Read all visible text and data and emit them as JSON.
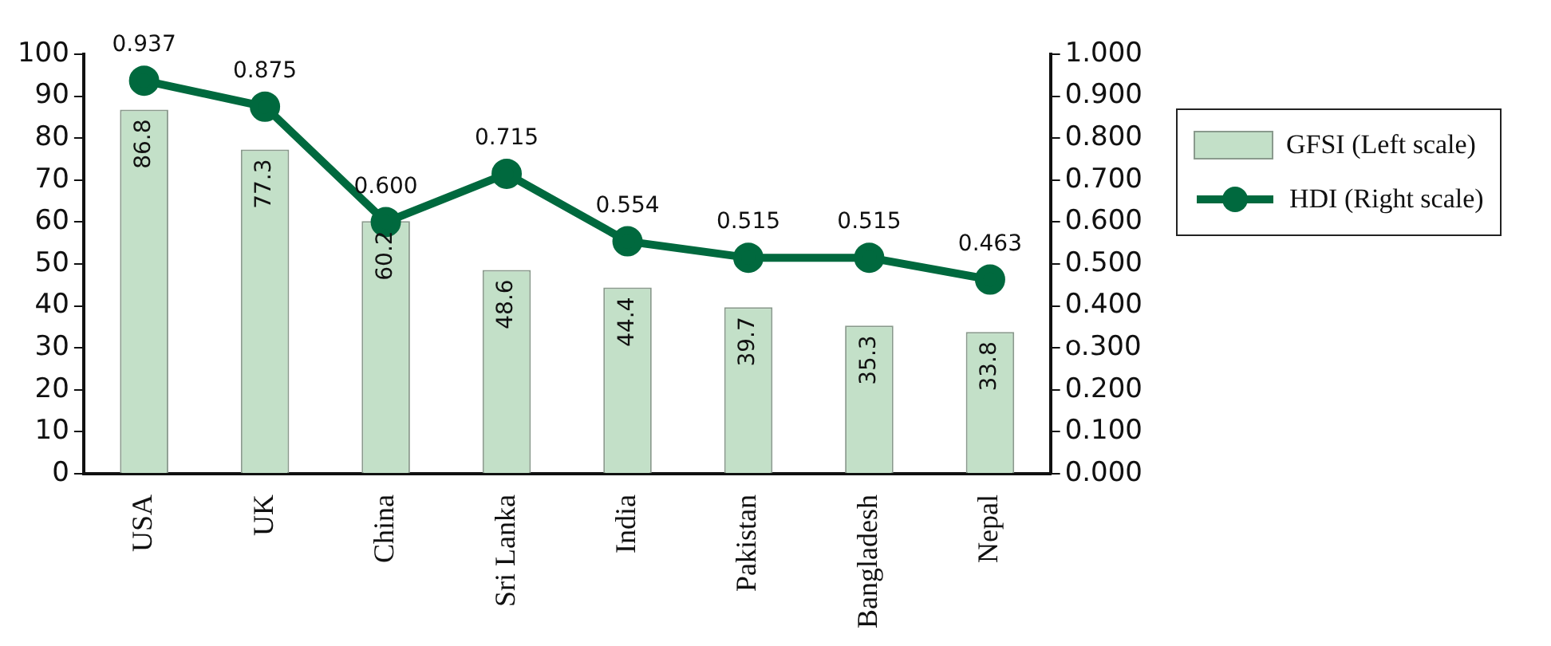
{
  "chart_data": {
    "type": "bar",
    "categories": [
      "USA",
      "UK",
      "China",
      "Sri Lanka",
      "India",
      "Pakistan",
      "Bangladesh",
      "Nepal"
    ],
    "series": [
      {
        "name": "GFSI (Left scale)",
        "color": "#c3e0c8",
        "values": [
          86.8,
          77.3,
          60.2,
          48.6,
          44.4,
          39.7,
          35.3,
          33.8
        ]
      },
      {
        "name": "HDI (Right scale)",
        "type": "line",
        "axis": "y2",
        "color": "#00693e",
        "values": [
          0.937,
          0.875,
          0.6,
          0.715,
          0.554,
          0.515,
          0.515,
          0.463
        ],
        "value_labels": [
          "0.937",
          "0.875",
          "0.600",
          "0.715",
          "0.554",
          "0.515",
          "0.515",
          "0.463"
        ]
      }
    ],
    "ylim": [
      0,
      100
    ],
    "yticks": [
      0,
      10,
      20,
      30,
      40,
      50,
      60,
      70,
      80,
      90,
      100
    ],
    "y2lim": [
      0,
      1
    ],
    "y2ticks": [
      {
        "value": 0,
        "label": "0.000"
      },
      {
        "value": 0.1,
        "label": "0.100"
      },
      {
        "value": 0.2,
        "label": "0.200"
      },
      {
        "value": 0.3,
        "label": "o.300"
      },
      {
        "value": 0.4,
        "label": "0.400"
      },
      {
        "value": 0.5,
        "label": "0.500"
      },
      {
        "value": 0.6,
        "label": "0.600"
      },
      {
        "value": 0.7,
        "label": "0.700"
      },
      {
        "value": 0.8,
        "label": "0.800"
      },
      {
        "value": 0.9,
        "label": "0.900"
      },
      {
        "value": 1,
        "label": "1.000"
      }
    ],
    "data_labels": true,
    "legend": "right",
    "grid": false,
    "marker": "circle"
  }
}
